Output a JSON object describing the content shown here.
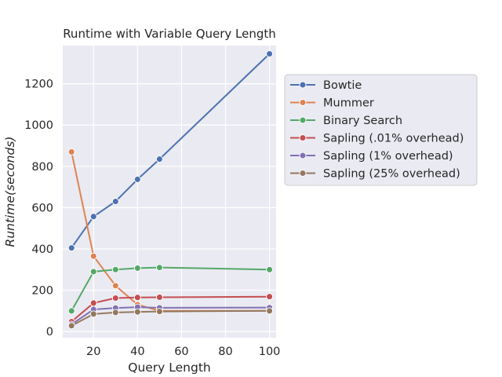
{
  "chart_data": {
    "type": "line",
    "title": "Runtime with Variable Query Length",
    "xlabel": "Query Length",
    "ylabel": "Runtime(seconds)",
    "xlim": [
      6,
      103
    ],
    "ylim": [
      -30,
      1385
    ],
    "xticks": [
      20,
      40,
      60,
      80,
      100
    ],
    "yticks": [
      0,
      200,
      400,
      600,
      800,
      1000,
      1200
    ],
    "grid": true,
    "legend_position": "right",
    "x": [
      10,
      20,
      30,
      40,
      50,
      100
    ],
    "series": [
      {
        "name": "Bowtie",
        "color": "#4c72b0",
        "values": [
          405,
          557,
          630,
          737,
          835,
          1345
        ]
      },
      {
        "name": "Mummer",
        "color": "#dd8452",
        "values": [
          870,
          365,
          222,
          130,
          100,
          100
        ]
      },
      {
        "name": "Binary Search",
        "color": "#55a868",
        "values": [
          100,
          290,
          300,
          307,
          310,
          300
        ]
      },
      {
        "name": "Sapling (.01% overhead)",
        "color": "#c44e52",
        "values": [
          48,
          138,
          162,
          165,
          166,
          169
        ]
      },
      {
        "name": "Sapling (1% overhead)",
        "color": "#8172b3",
        "values": [
          35,
          107,
          114,
          118,
          115,
          116
        ]
      },
      {
        "name": "Sapling (25% overhead)",
        "color": "#937860",
        "values": [
          28,
          85,
          92,
          95,
          97,
          100
        ]
      }
    ]
  }
}
